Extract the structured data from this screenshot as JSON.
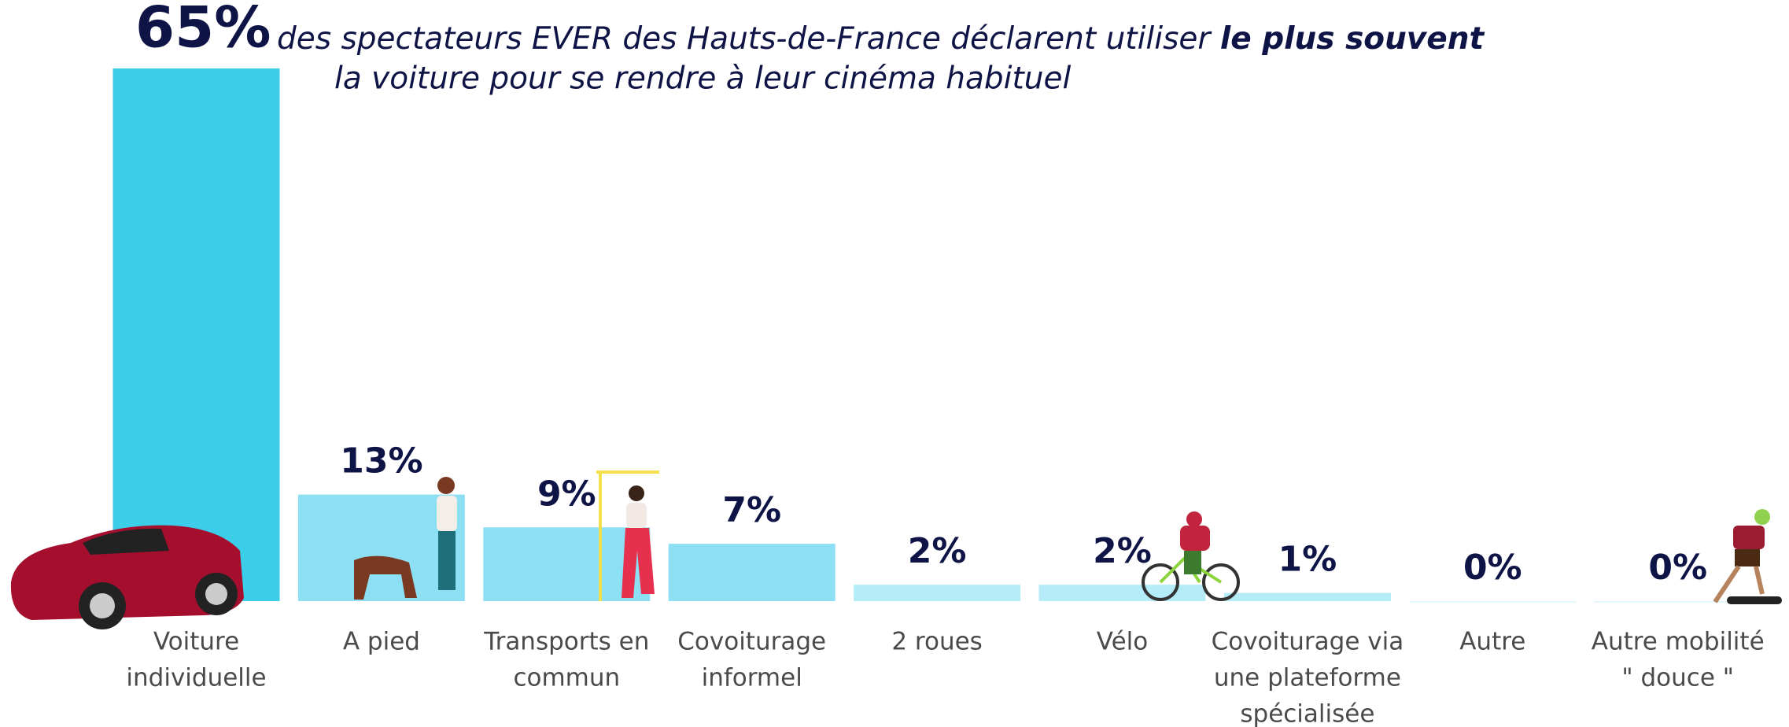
{
  "chart_data": {
    "type": "bar",
    "title": [
      "des spectateurs EVER des Hauts-de-France déclarent utiliser ",
      "le plus souvent",
      "la voiture pour se rendre à leur cinéma habituel"
    ],
    "categories": [
      [
        "Voiture",
        "individuelle"
      ],
      [
        "A pied"
      ],
      [
        "Transports en",
        "commun"
      ],
      [
        "Covoiturage",
        "informel"
      ],
      [
        "2 roues"
      ],
      [
        "Vélo"
      ],
      [
        "Covoiturage via",
        "une plateforme",
        "spécialisée"
      ],
      [
        "Autre"
      ],
      [
        "Autre mobilité",
        "\" douce \""
      ]
    ],
    "values": [
      65,
      13,
      9,
      7,
      2,
      2,
      1,
      0,
      0
    ],
    "value_labels": [
      "65%",
      "13%",
      "9%",
      "7%",
      "2%",
      "2%",
      "1%",
      "0%",
      "0%"
    ],
    "colors": [
      "#3ccde9",
      "#8de0f3",
      "#8de0f3",
      "#8de0f3",
      "#b4ecf8",
      "#b4ecf8",
      "#b4ecf8",
      "#e3f7fc",
      "#e3f7fc"
    ],
    "ylim": [
      0,
      65
    ]
  }
}
